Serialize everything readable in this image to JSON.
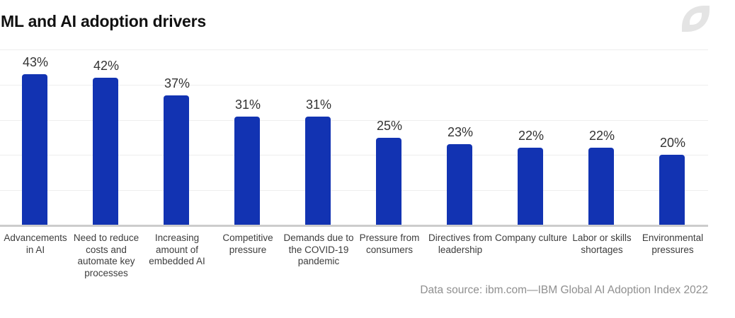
{
  "chart_data": {
    "type": "bar",
    "title": "ML and AI adoption drivers",
    "categories": [
      "Advancements in AI",
      "Need to reduce costs and automate key processes",
      "Increasing amount of embedded AI",
      "Competitive pressure",
      "Demands due to the COVID-19 pandemic",
      "Pressure from consumers",
      "Directives from leadership",
      "Company culture",
      "Labor or skills shortages",
      "Environmental pressures"
    ],
    "category_display": [
      "Advancements\nin AI",
      "Need to reduce\ncosts and\nautomate key\nprocesses",
      "Increasing\namount of\nembedded AI",
      "Competitive\npressure",
      "Demands due to\nthe COVID-19\npandemic",
      "Pressure from\nconsumers",
      "Directives from\nleadership",
      "Company culture",
      "Labor or skills\nshortages",
      "Environmental\npressures"
    ],
    "values": [
      43,
      42,
      37,
      31,
      31,
      25,
      23,
      22,
      22,
      20
    ],
    "value_labels": [
      "43%",
      "42%",
      "37%",
      "31%",
      "31%",
      "25%",
      "23%",
      "22%",
      "22%",
      "20%"
    ],
    "xlabel": "",
    "ylabel": "",
    "ylim": [
      0,
      50
    ],
    "gridline_step": 10,
    "grid": true,
    "legend": false,
    "bar_color": "#1233b2",
    "source": "Data source: ibm.com—IBM Global AI Adoption Index 2022"
  },
  "colors": {
    "bar": "#1233b2",
    "gridline": "#eeeeee",
    "baseline": "#cccccc",
    "title_text": "#111111",
    "value_label_text": "#333333",
    "axis_label_text": "#3d3d3d",
    "source_text": "#8f8f8f",
    "logo": "#e4e4e4"
  },
  "icons": {
    "logo": "leaf-logo-icon"
  }
}
